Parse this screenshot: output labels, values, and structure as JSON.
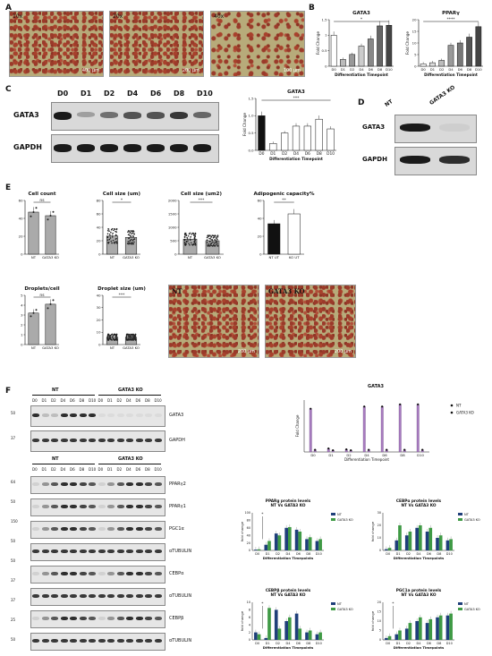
{
  "panelA": {
    "letter": "A",
    "images": [
      {
        "label": "10x",
        "scale": "400 μm"
      },
      {
        "label": "20x",
        "scale": "200 μm"
      },
      {
        "label": "40x",
        "scale": "100 μm"
      }
    ]
  },
  "panelB": {
    "letter": "B",
    "charts": [
      {
        "title": "GATA3",
        "ylabel": "Fold Change",
        "xlabel": "Differentiation Timepoint",
        "categories": [
          "D0",
          "D1",
          "D2",
          "D4",
          "D6",
          "D8",
          "D10"
        ],
        "values": [
          1.0,
          0.22,
          0.38,
          0.65,
          0.88,
          1.3,
          1.32
        ],
        "yticks": [
          "0",
          "0.5",
          "1",
          "1.5"
        ],
        "sig": "*"
      },
      {
        "title": "PPARγ",
        "ylabel": "Fold Change",
        "xlabel": "Differentiation Timepoint",
        "categories": [
          "D0",
          "D1",
          "D2",
          "D4",
          "D6",
          "D8",
          "D10"
        ],
        "values": [
          1,
          1.5,
          2.5,
          9,
          10,
          12.5,
          17
        ],
        "yticks": [
          "0",
          "5",
          "10",
          "15",
          "20"
        ],
        "sig": "****"
      }
    ]
  },
  "panelC": {
    "letter": "C",
    "lanes": [
      "D0",
      "D1",
      "D2",
      "D4",
      "D6",
      "D8",
      "D10"
    ],
    "rows": [
      "GATA3",
      "GAPDH"
    ],
    "chart": {
      "title": "GATA3",
      "ylabel": "Fold Change",
      "xlabel": "Differentiation Timepoint",
      "categories": [
        "D0",
        "D1",
        "D2",
        "D4",
        "D6",
        "D8",
        "D10"
      ],
      "values": [
        1.0,
        0.2,
        0.5,
        0.7,
        0.7,
        0.9,
        0.62
      ],
      "yticks": [
        "0.0",
        "0.5",
        "1.0",
        "1.5"
      ],
      "sig": "***"
    }
  },
  "panelD": {
    "letter": "D",
    "lanes": [
      "NT",
      "GATA3 KO"
    ],
    "rows": [
      "GATA3",
      "GAPDH"
    ]
  },
  "panelE": {
    "letter": "E",
    "charts": [
      {
        "title": "Cell count",
        "categories": [
          "NT",
          "GATA3 KO"
        ],
        "values": [
          47,
          43
        ],
        "sig": "ns",
        "yticks": [
          "0",
          "20",
          "40",
          "60"
        ]
      },
      {
        "title": "Cell size (um)",
        "categories": [
          "NT",
          "GATA3 KO"
        ],
        "values": [
          27,
          25
        ],
        "sig": "*",
        "yticks": [
          "0",
          "20",
          "40",
          "60",
          "80"
        ]
      },
      {
        "title": "Cell size (um2)",
        "categories": [
          "NT",
          "GATA3 KO"
        ],
        "values": [
          560,
          500
        ],
        "sig": "***",
        "yticks": [
          "0",
          "500",
          "1000",
          "1500",
          "2000"
        ]
      },
      {
        "title": "Adipogenic capacity%",
        "categories": [
          "NT UT",
          "KO UT"
        ],
        "values": [
          34,
          45
        ],
        "sig": "**",
        "yticks": [
          "0",
          "20",
          "40",
          "60"
        ]
      },
      {
        "title": "Droplets/cell",
        "categories": [
          "NT",
          "GATA3 KO"
        ],
        "values": [
          3.2,
          4.1
        ],
        "sig": "ns",
        "yticks": [
          "0",
          "1",
          "2",
          "3",
          "4",
          "5"
        ]
      },
      {
        "title": "Droplet size (um)",
        "categories": [
          "NT",
          "GATA3 KO"
        ],
        "values": [
          6,
          6
        ],
        "sig": "***",
        "yticks": [
          "0",
          "10",
          "20",
          "30",
          "40"
        ]
      }
    ],
    "images": [
      {
        "label": "NT",
        "scale": "200 μm"
      },
      {
        "label": "GATA3  KO",
        "scale": "200 μm"
      }
    ]
  },
  "panelF": {
    "letter": "F",
    "blot1": {
      "groups": [
        "NT",
        "GATA3 KO"
      ],
      "lanes": [
        "D0",
        "D1",
        "D2",
        "D4",
        "D6",
        "D8",
        "D10",
        "D0",
        "D1",
        "D2",
        "D4",
        "D6",
        "D8",
        "D10"
      ],
      "rows": [
        "GATA3",
        "GAPDH"
      ],
      "mw": [
        "50",
        "37"
      ]
    },
    "blot2": {
      "groups": [
        "NT",
        "GATA3 KO"
      ],
      "lanes": [
        "D0",
        "D1",
        "D2",
        "D4",
        "D6",
        "D8",
        "D10",
        "D0",
        "D1",
        "D2",
        "D4",
        "D6",
        "D8",
        "D10"
      ],
      "rows": [
        "PPARγ2",
        "PPARγ1",
        "PGC1α",
        "αTUBULIN",
        "CEBPα",
        "αTUBULIN",
        "CEBPβ",
        "αTUBULIN"
      ],
      "mw": [
        "64",
        "50",
        "150",
        "50",
        "50",
        "37",
        "37",
        "25",
        "50"
      ]
    },
    "legend": {
      "nt": "NT",
      "ko": "GATA3 KO",
      "nt_color": "#1f3f7a",
      "ko_color": "#3f9a45"
    },
    "gata3_chart": {
      "title": "GATA3",
      "ylabel": "Fold Change",
      "xlabel": "Differentiation Timepoint",
      "categories": [
        "D0",
        "D1",
        "D2",
        "D4",
        "D6",
        "D8",
        "D10"
      ],
      "nt": [
        1.0,
        0.08,
        0.06,
        1.05,
        1.05,
        1.1,
        1.1
      ],
      "ko": [
        0.05,
        0.04,
        0.04,
        0.05,
        0.05,
        0.05,
        0.05
      ]
    },
    "charts": [
      {
        "title": "PPARg protein levels",
        "subtitle": "NT Vs GATA3 KO",
        "ylabel": "fold change",
        "xlabel": "Differentiation Timepoints",
        "categories": [
          "D0",
          "D1",
          "D2",
          "D4",
          "D6",
          "D8",
          "D10"
        ],
        "nt": [
          2,
          15,
          45,
          60,
          55,
          30,
          25
        ],
        "ko": [
          3,
          25,
          40,
          62,
          50,
          35,
          30
        ],
        "yticks": [
          "0",
          "20",
          "40",
          "60",
          "80",
          "100"
        ],
        "sig": "*"
      },
      {
        "title": "CEBPα protein levels",
        "subtitle": "NT Vs GATA3 KO",
        "ylabel": "fold change",
        "xlabel": "Differentiation Timepoints",
        "categories": [
          "D0",
          "D1",
          "D2",
          "D4",
          "D6",
          "D8",
          "D10"
        ],
        "nt": [
          1,
          8,
          12,
          18,
          15,
          10,
          8
        ],
        "ko": [
          2,
          20,
          15,
          20,
          18,
          12,
          9
        ],
        "yticks": [
          "0",
          "10",
          "20",
          "30"
        ],
        "sig": ""
      },
      {
        "title": "CEBPβ protein levels",
        "subtitle": "NT Vs GATA3 KO",
        "ylabel": "fold change",
        "xlabel": "Differentiation Timepoints",
        "categories": [
          "D0",
          "D1",
          "D2",
          "D4",
          "D6",
          "D8",
          "D10"
        ],
        "nt": [
          2,
          0.5,
          8,
          5,
          7,
          2,
          1.5
        ],
        "ko": [
          1.5,
          8.5,
          3,
          6,
          3,
          2.5,
          2
        ],
        "yticks": [
          "0",
          "2",
          "4",
          "6",
          "8",
          "10"
        ],
        "sig": "*"
      },
      {
        "title": "PGC1a protein levels",
        "subtitle": "NT Vs GATA3 KO",
        "ylabel": "fold change",
        "xlabel": "Differentiation Timepoints",
        "categories": [
          "D0",
          "D1",
          "D2",
          "D4",
          "D6",
          "D8",
          "D10"
        ],
        "nt": [
          1,
          3,
          6,
          10,
          9,
          12,
          13
        ],
        "ko": [
          2,
          5,
          9,
          12,
          11,
          13,
          14
        ],
        "yticks": [
          "0",
          "5",
          "10",
          "15",
          "20"
        ],
        "sig": "*"
      }
    ]
  }
}
